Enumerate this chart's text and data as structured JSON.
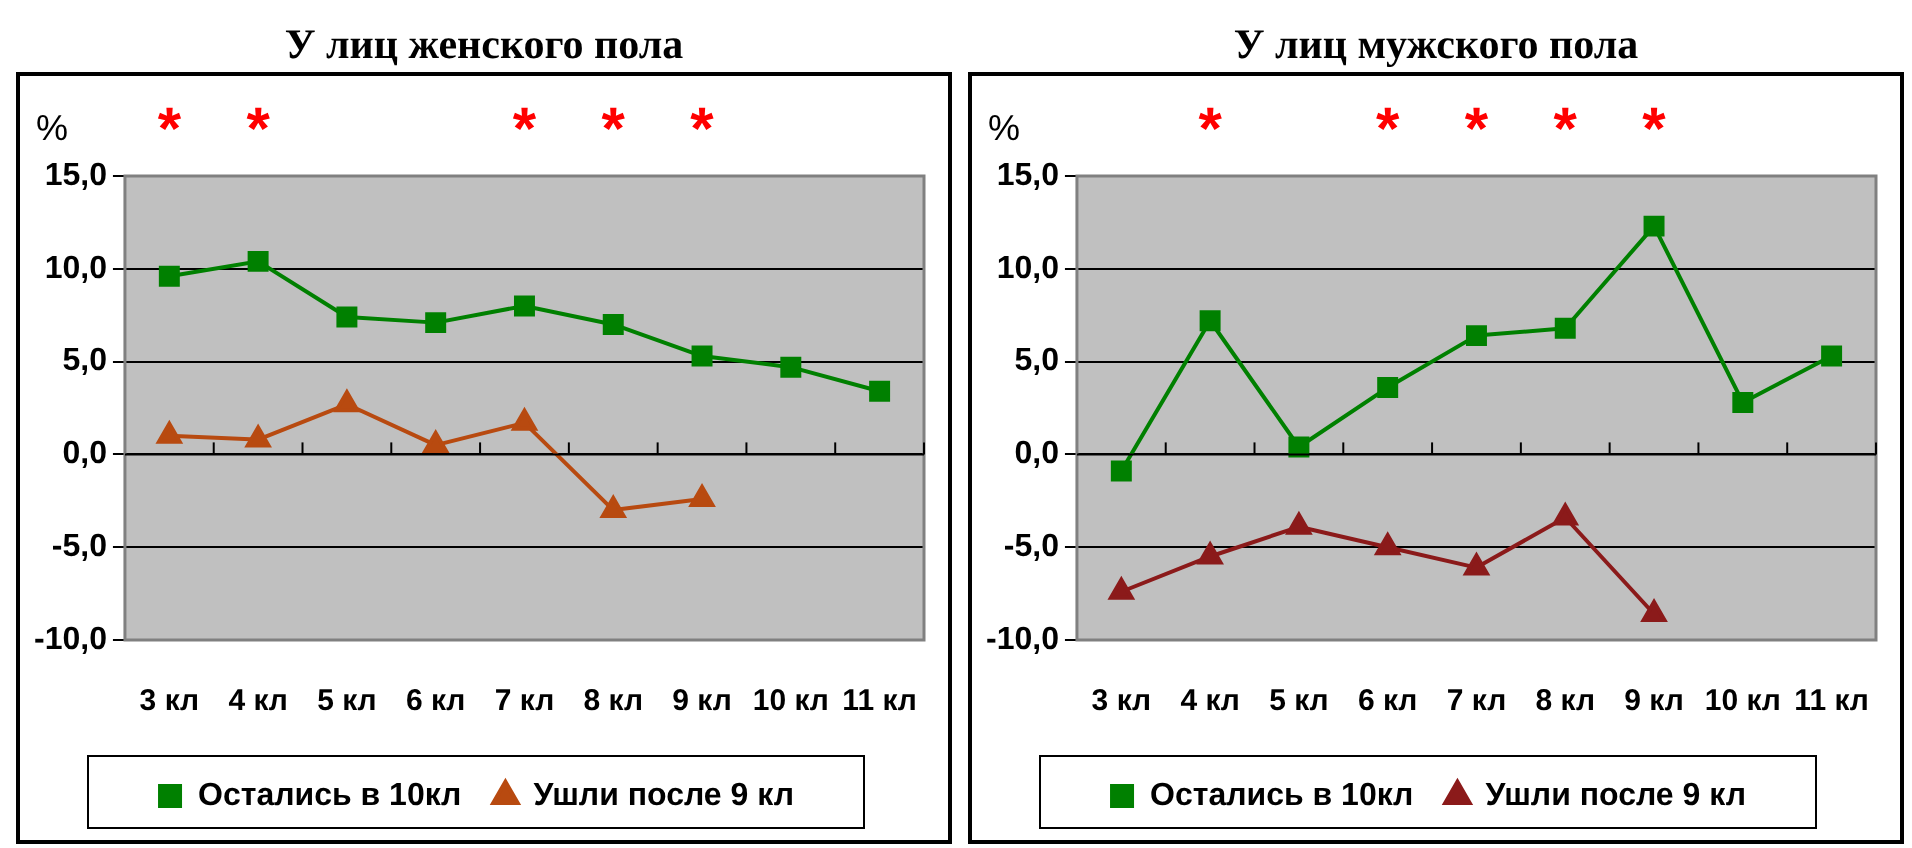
{
  "chart_data": [
    {
      "type": "line",
      "title": "У лиц женского пола",
      "ylabel": "%",
      "categories": [
        "3 кл",
        "4 кл",
        "5 кл",
        "6 кл",
        "7 кл",
        "8 кл",
        "9 кл",
        "10 кл",
        "11 кл"
      ],
      "series": [
        {
          "name": "Остались в 10кл",
          "color": "#008000",
          "marker": "square",
          "values": [
            9.6,
            10.4,
            7.4,
            7.1,
            8.0,
            7.0,
            5.3,
            4.7,
            3.4
          ]
        },
        {
          "name": "Ушли после 9 кл",
          "color": "#b84a10",
          "marker": "triangle",
          "values": [
            1.0,
            0.8,
            2.7,
            0.5,
            1.7,
            -3.0,
            -2.4,
            null,
            null
          ]
        }
      ],
      "ylim": [
        -10,
        15
      ],
      "yticks": [
        {
          "value": -10,
          "label": "-10,0"
        },
        {
          "value": -5,
          "label": "-5,0"
        },
        {
          "value": 0,
          "label": "0,0"
        },
        {
          "value": 5,
          "label": "5,0"
        },
        {
          "value": 10,
          "label": "10,0"
        },
        {
          "value": 15,
          "label": "15,0"
        }
      ],
      "grid": "y",
      "legend": "bottom",
      "annotations": [
        "*",
        "*",
        null,
        null,
        "*",
        "*",
        "*",
        null,
        null
      ]
    },
    {
      "type": "line",
      "title": "У лиц мужского пола",
      "ylabel": "%",
      "categories": [
        "3 кл",
        "4 кл",
        "5 кл",
        "6 кл",
        "7 кл",
        "8 кл",
        "9 кл",
        "10 кл",
        "11 кл"
      ],
      "series": [
        {
          "name": "Остались в 10кл",
          "color": "#008000",
          "marker": "square",
          "values": [
            -0.9,
            7.2,
            0.4,
            3.6,
            6.4,
            6.8,
            12.3,
            2.8,
            5.3
          ]
        },
        {
          "name": "Ушли после 9 кл",
          "color": "#8b1a1a",
          "marker": "triangle",
          "values": [
            -7.4,
            -5.5,
            -3.9,
            -5.0,
            -6.1,
            -3.4,
            -8.6,
            null,
            null
          ]
        }
      ],
      "ylim": [
        -10,
        15
      ],
      "yticks": [
        {
          "value": -10,
          "label": "-10,0"
        },
        {
          "value": -5,
          "label": "-5,0"
        },
        {
          "value": 0,
          "label": "0,0"
        },
        {
          "value": 5,
          "label": "5,0"
        },
        {
          "value": 10,
          "label": "10,0"
        },
        {
          "value": 15,
          "label": "15,0"
        }
      ],
      "grid": "y",
      "legend": "bottom",
      "annotations": [
        null,
        "*",
        null,
        "*",
        "*",
        "*",
        "*",
        null,
        null
      ]
    }
  ]
}
